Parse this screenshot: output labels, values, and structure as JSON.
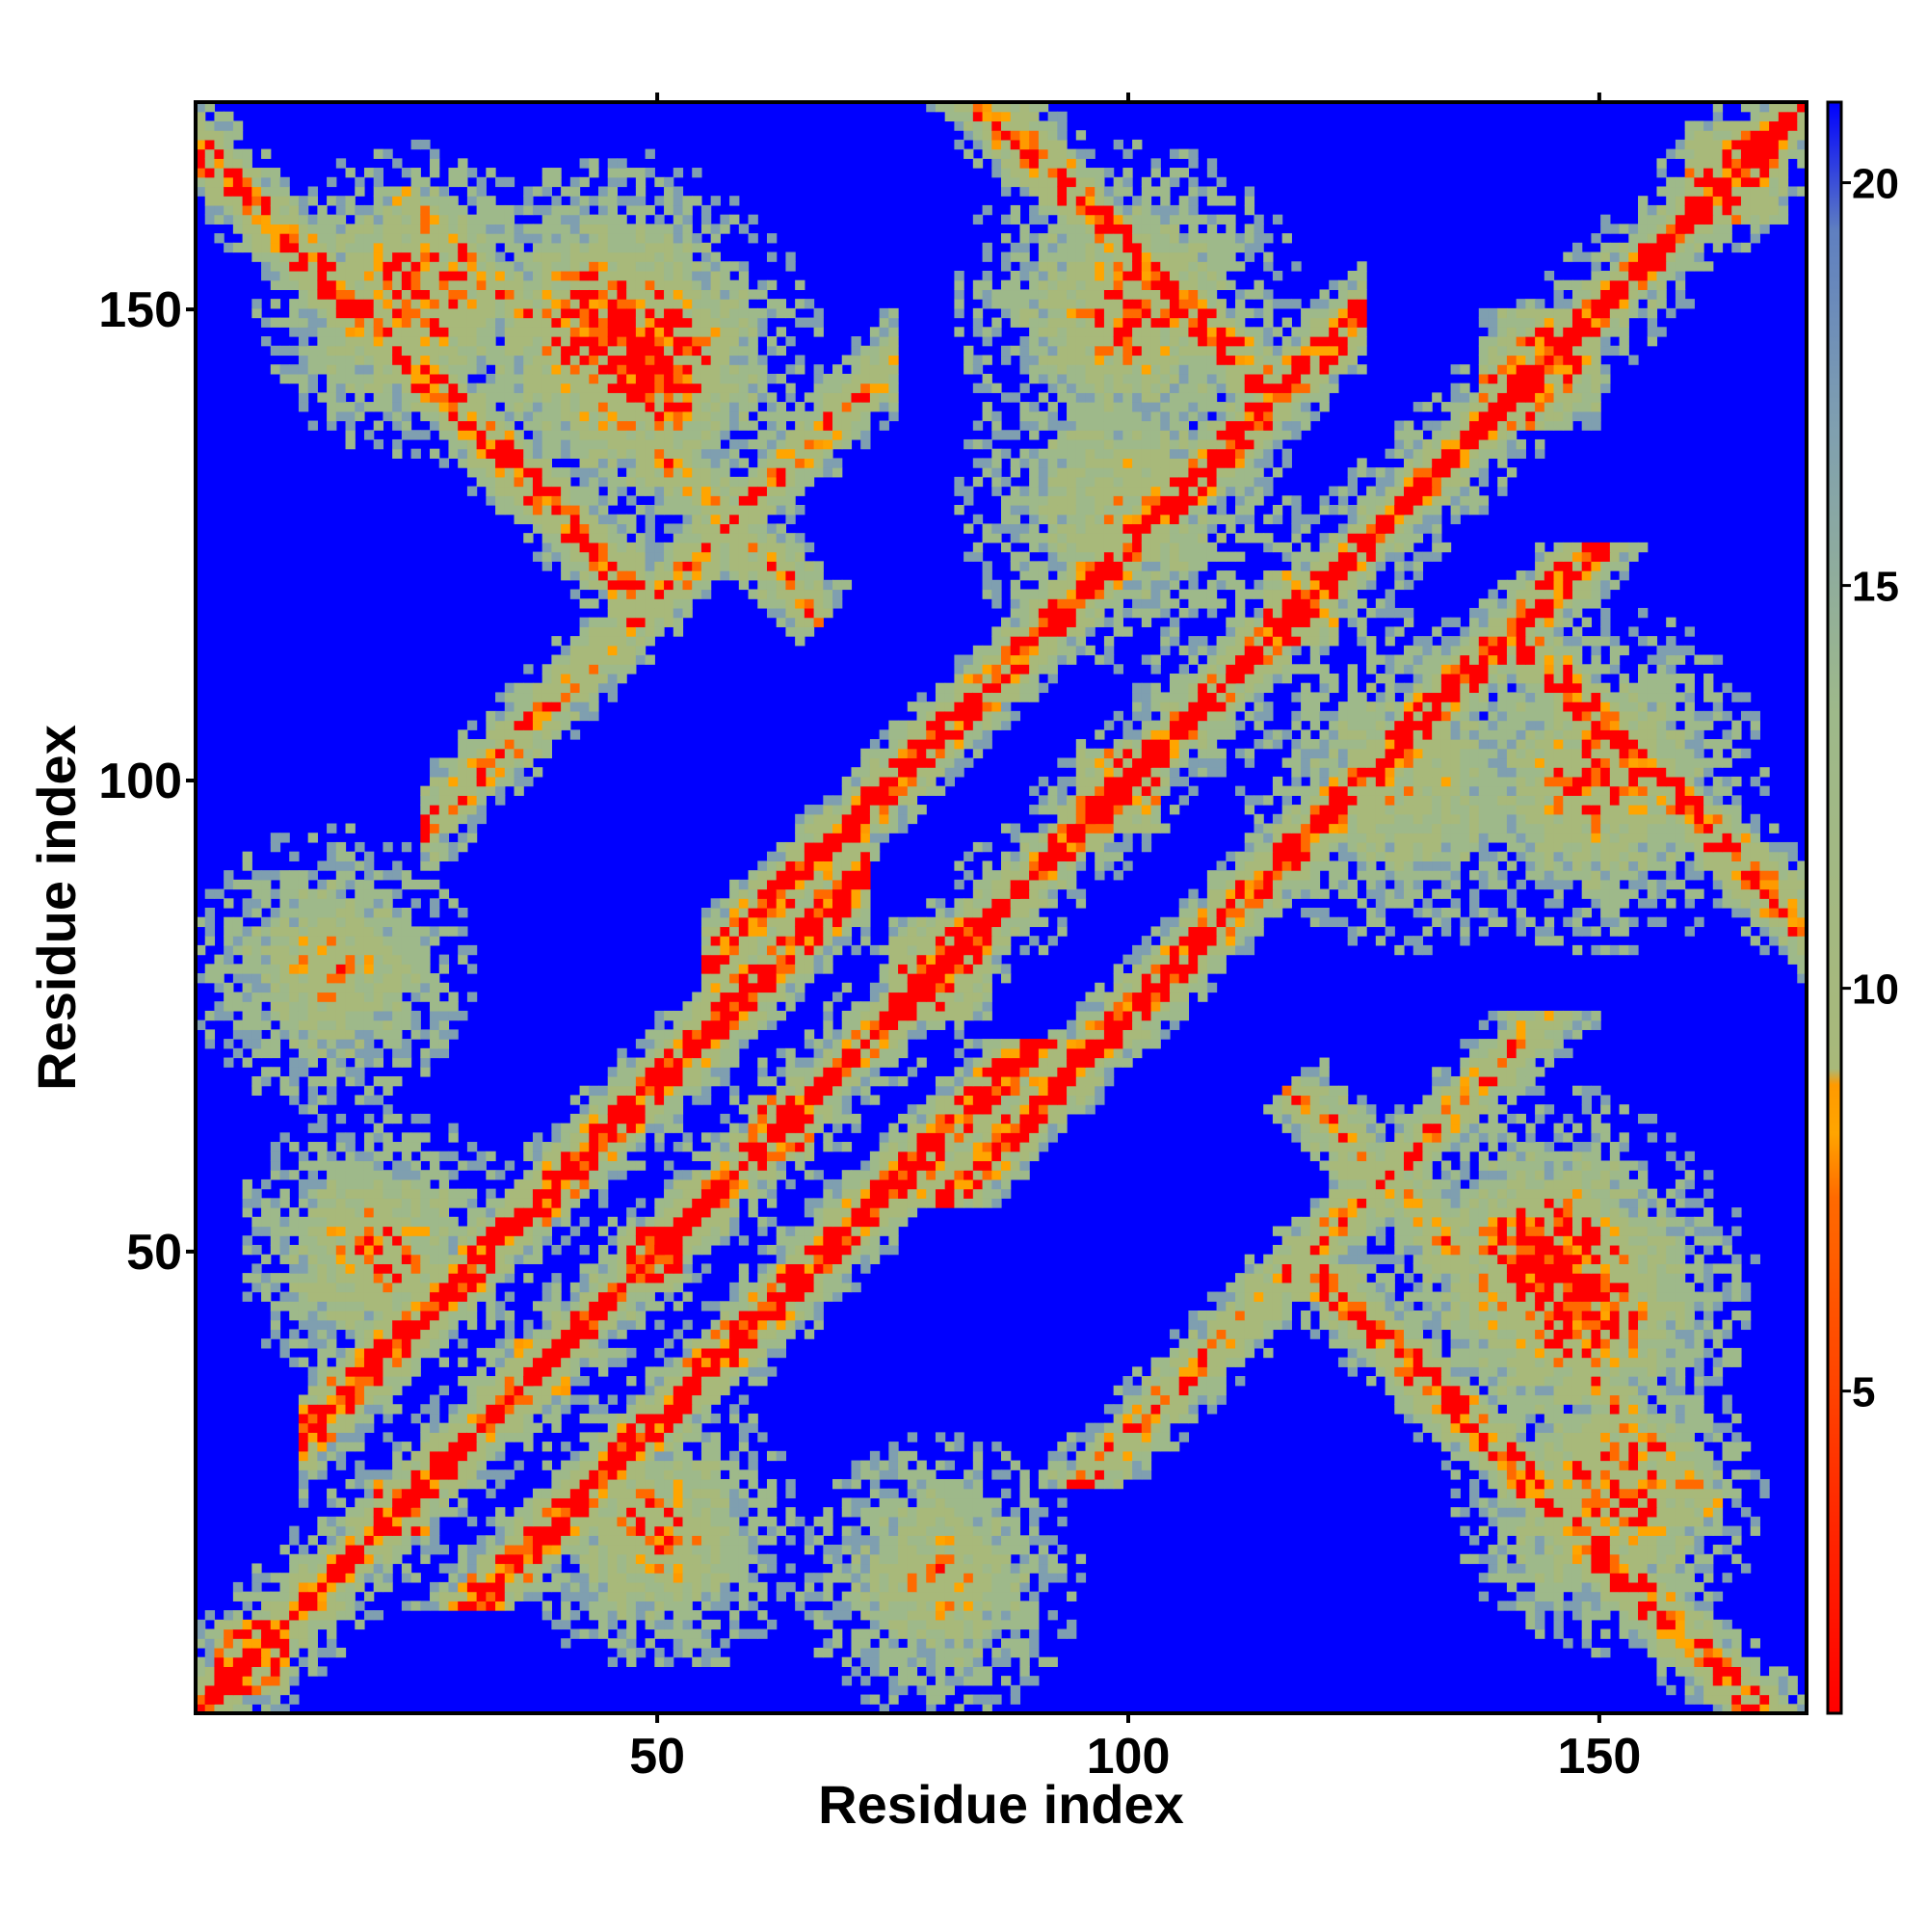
{
  "chart_data": {
    "type": "heatmap",
    "title": "",
    "xlabel": "Residue index",
    "ylabel": "Residue index",
    "n_residues": 172,
    "xlim": [
      1,
      172
    ],
    "ylim": [
      1,
      172
    ],
    "x_ticks": [
      50,
      100,
      150
    ],
    "y_ticks": [
      50,
      100,
      150
    ],
    "colorbar": {
      "range": [
        1,
        21
      ],
      "ticks": [
        5,
        10,
        15,
        20
      ],
      "colors": {
        "0": "#ff0000",
        "0.32": "#ff6a00",
        "0.36": "#ffa500",
        "0.39": "#ff9a00",
        "0.40": "#a8b97a",
        "0.62": "#9eb98a",
        "0.80": "#7f9fb0",
        "0.92": "#5f7fc0",
        "1": "#0000ff"
      }
    },
    "value_meaning": "pairwise residue distance; diagonal near 1, background clipped at 21",
    "secondary_structure_segments": [
      [
        3,
        10
      ],
      [
        20,
        25
      ],
      [
        35,
        40
      ],
      [
        46,
        52
      ],
      [
        60,
        66
      ],
      [
        75,
        85
      ],
      [
        95,
        103
      ],
      [
        115,
        122
      ],
      [
        138,
        150
      ],
      [
        160,
        170
      ]
    ],
    "contact_bands": [
      {
        "kind": "parallel",
        "i_start": 12,
        "j_start": 30,
        "length": 60,
        "strength": 0.8
      },
      {
        "kind": "antiparallel",
        "i_center": 18,
        "j_center": 150,
        "span": 60,
        "strength": 0.7
      },
      {
        "kind": "parallel",
        "i_start": 55,
        "j_start": 80,
        "length": 70,
        "strength": 0.75
      },
      {
        "kind": "antiparallel",
        "i_center": 95,
        "j_center": 162,
        "span": 40,
        "strength": 0.7
      },
      {
        "kind": "parallel",
        "i_start": 25,
        "j_start": 95,
        "length": 50,
        "strength": 0.6
      },
      {
        "kind": "antiparallel",
        "i_center": 45,
        "j_center": 140,
        "span": 45,
        "strength": 0.55
      }
    ],
    "blob_clusters": [
      {
        "i": 24,
        "j": 152,
        "r": 10,
        "strength": 0.7
      },
      {
        "i": 45,
        "j": 148,
        "r": 12,
        "strength": 0.75
      },
      {
        "i": 100,
        "j": 150,
        "r": 12,
        "strength": 0.6
      },
      {
        "i": 145,
        "j": 48,
        "r": 12,
        "strength": 0.75
      },
      {
        "i": 150,
        "j": 22,
        "r": 10,
        "strength": 0.55
      },
      {
        "i": 50,
        "j": 20,
        "r": 10,
        "strength": 0.6
      },
      {
        "i": 80,
        "j": 15,
        "r": 10,
        "strength": 0.55
      },
      {
        "i": 130,
        "j": 100,
        "r": 12,
        "strength": 0.5
      }
    ]
  }
}
